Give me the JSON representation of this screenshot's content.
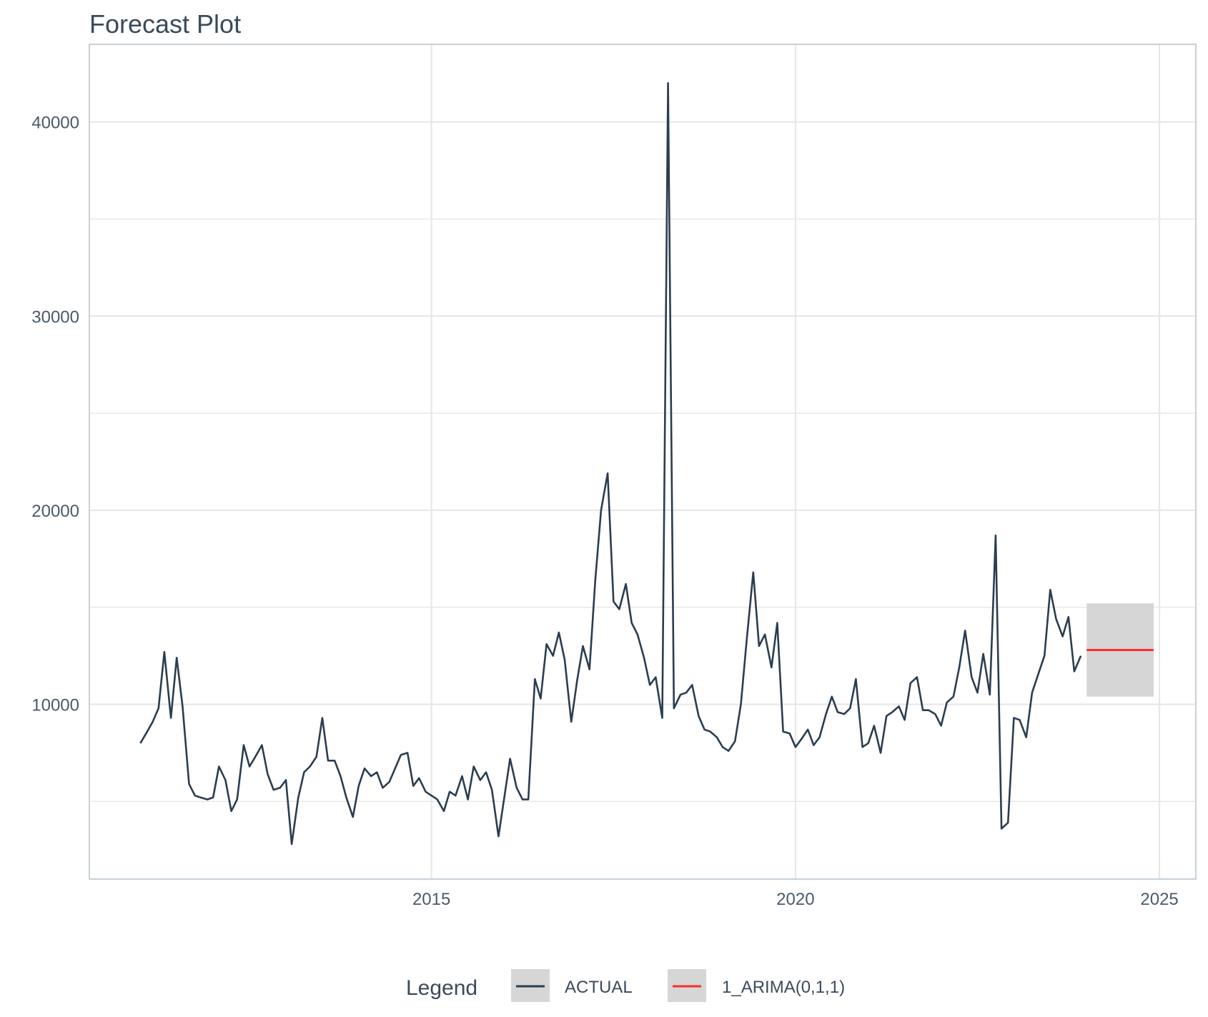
{
  "chart_data": {
    "type": "line",
    "title": "Forecast Plot",
    "xlabel": "",
    "ylabel": "",
    "xlim": [
      2010.3,
      2025.5
    ],
    "ylim": [
      1000,
      44000
    ],
    "x_ticks": [
      2015,
      2020,
      2025
    ],
    "x_tick_labels": [
      "2015",
      "2020",
      "2025"
    ],
    "y_ticks": [
      10000,
      20000,
      30000,
      40000
    ],
    "y_tick_labels": [
      "10000",
      "20000",
      "30000",
      "40000"
    ],
    "grid": true,
    "legend": {
      "title": "Legend",
      "position": "bottom",
      "entries": [
        "ACTUAL",
        "1_ARIMA(0,1,1)"
      ]
    },
    "colors": {
      "actual": "#2b3d4f",
      "forecast": "#ff2a2a",
      "interval": "#d6d6d6",
      "grid": "#e6e6e6",
      "frame": "#c8d0d8"
    },
    "series": [
      {
        "name": "ACTUAL",
        "points": [
          [
            2011.0,
            8000
          ],
          [
            2011.08,
            8500
          ],
          [
            2011.17,
            9100
          ],
          [
            2011.25,
            9800
          ],
          [
            2011.33,
            12700
          ],
          [
            2011.42,
            9300
          ],
          [
            2011.5,
            12400
          ],
          [
            2011.58,
            9900
          ],
          [
            2011.67,
            5900
          ],
          [
            2011.75,
            5300
          ],
          [
            2011.83,
            5200
          ],
          [
            2011.92,
            5100
          ],
          [
            2012.0,
            5200
          ],
          [
            2012.08,
            6800
          ],
          [
            2012.17,
            6100
          ],
          [
            2012.25,
            4500
          ],
          [
            2012.33,
            5100
          ],
          [
            2012.42,
            7900
          ],
          [
            2012.5,
            6800
          ],
          [
            2012.58,
            7300
          ],
          [
            2012.67,
            7900
          ],
          [
            2012.75,
            6400
          ],
          [
            2012.83,
            5600
          ],
          [
            2012.92,
            5700
          ],
          [
            2013.0,
            6100
          ],
          [
            2013.08,
            2800
          ],
          [
            2013.17,
            5200
          ],
          [
            2013.25,
            6500
          ],
          [
            2013.33,
            6800
          ],
          [
            2013.42,
            7300
          ],
          [
            2013.5,
            9300
          ],
          [
            2013.58,
            7100
          ],
          [
            2013.67,
            7100
          ],
          [
            2013.75,
            6300
          ],
          [
            2013.83,
            5200
          ],
          [
            2013.92,
            4200
          ],
          [
            2014.0,
            5800
          ],
          [
            2014.08,
            6700
          ],
          [
            2014.17,
            6300
          ],
          [
            2014.25,
            6500
          ],
          [
            2014.33,
            5700
          ],
          [
            2014.42,
            6000
          ],
          [
            2014.5,
            6700
          ],
          [
            2014.58,
            7400
          ],
          [
            2014.67,
            7500
          ],
          [
            2014.75,
            5800
          ],
          [
            2014.83,
            6200
          ],
          [
            2014.92,
            5500
          ],
          [
            2015.0,
            5300
          ],
          [
            2015.08,
            5100
          ],
          [
            2015.17,
            4500
          ],
          [
            2015.25,
            5500
          ],
          [
            2015.33,
            5300
          ],
          [
            2015.42,
            6300
          ],
          [
            2015.5,
            5100
          ],
          [
            2015.58,
            6800
          ],
          [
            2015.67,
            6100
          ],
          [
            2015.75,
            6500
          ],
          [
            2015.83,
            5600
          ],
          [
            2015.92,
            3200
          ],
          [
            2016.0,
            5200
          ],
          [
            2016.08,
            7200
          ],
          [
            2016.17,
            5700
          ],
          [
            2016.25,
            5100
          ],
          [
            2016.33,
            5100
          ],
          [
            2016.42,
            11300
          ],
          [
            2016.5,
            10300
          ],
          [
            2016.58,
            13100
          ],
          [
            2016.67,
            12500
          ],
          [
            2016.75,
            13700
          ],
          [
            2016.83,
            12300
          ],
          [
            2016.92,
            9100
          ],
          [
            2017.0,
            11200
          ],
          [
            2017.08,
            13000
          ],
          [
            2017.17,
            11800
          ],
          [
            2017.25,
            16400
          ],
          [
            2017.33,
            20000
          ],
          [
            2017.42,
            21900
          ],
          [
            2017.5,
            15300
          ],
          [
            2017.58,
            14900
          ],
          [
            2017.67,
            16200
          ],
          [
            2017.75,
            14200
          ],
          [
            2017.83,
            13600
          ],
          [
            2017.92,
            12400
          ],
          [
            2018.0,
            11000
          ],
          [
            2018.08,
            11400
          ],
          [
            2018.17,
            9300
          ],
          [
            2018.25,
            42000
          ],
          [
            2018.33,
            9800
          ],
          [
            2018.42,
            10500
          ],
          [
            2018.5,
            10600
          ],
          [
            2018.58,
            11000
          ],
          [
            2018.67,
            9400
          ],
          [
            2018.75,
            8700
          ],
          [
            2018.83,
            8600
          ],
          [
            2018.92,
            8300
          ],
          [
            2019.0,
            7800
          ],
          [
            2019.08,
            7600
          ],
          [
            2019.17,
            8100
          ],
          [
            2019.25,
            10000
          ],
          [
            2019.33,
            13300
          ],
          [
            2019.42,
            16800
          ],
          [
            2019.5,
            13000
          ],
          [
            2019.58,
            13600
          ],
          [
            2019.67,
            11900
          ],
          [
            2019.75,
            14200
          ],
          [
            2019.83,
            8600
          ],
          [
            2019.92,
            8500
          ],
          [
            2020.0,
            7800
          ],
          [
            2020.08,
            8200
          ],
          [
            2020.17,
            8700
          ],
          [
            2020.25,
            7900
          ],
          [
            2020.33,
            8300
          ],
          [
            2020.42,
            9500
          ],
          [
            2020.5,
            10400
          ],
          [
            2020.58,
            9600
          ],
          [
            2020.67,
            9500
          ],
          [
            2020.75,
            9800
          ],
          [
            2020.83,
            11300
          ],
          [
            2020.92,
            7800
          ],
          [
            2021.0,
            8000
          ],
          [
            2021.08,
            8900
          ],
          [
            2021.17,
            7500
          ],
          [
            2021.25,
            9400
          ],
          [
            2021.33,
            9600
          ],
          [
            2021.42,
            9900
          ],
          [
            2021.5,
            9200
          ],
          [
            2021.58,
            11100
          ],
          [
            2021.67,
            11400
          ],
          [
            2021.75,
            9700
          ],
          [
            2021.83,
            9700
          ],
          [
            2021.92,
            9500
          ],
          [
            2022.0,
            8900
          ],
          [
            2022.08,
            10100
          ],
          [
            2022.17,
            10400
          ],
          [
            2022.25,
            11900
          ],
          [
            2022.33,
            13800
          ],
          [
            2022.42,
            11400
          ],
          [
            2022.5,
            10600
          ],
          [
            2022.58,
            12600
          ],
          [
            2022.67,
            10500
          ],
          [
            2022.75,
            18700
          ],
          [
            2022.83,
            3600
          ],
          [
            2022.92,
            3900
          ],
          [
            2023.0,
            9300
          ],
          [
            2023.08,
            9200
          ],
          [
            2023.17,
            8300
          ],
          [
            2023.25,
            10600
          ],
          [
            2023.33,
            11500
          ],
          [
            2023.42,
            12500
          ],
          [
            2023.5,
            15900
          ],
          [
            2023.58,
            14400
          ],
          [
            2023.67,
            13500
          ],
          [
            2023.75,
            14500
          ],
          [
            2023.83,
            11700
          ],
          [
            2023.92,
            12500
          ]
        ]
      },
      {
        "name": "1_ARIMA(0,1,1)",
        "points": [
          [
            2024.0,
            12800
          ],
          [
            2024.92,
            12800
          ]
        ],
        "interval": {
          "x": [
            2024.0,
            2024.92
          ],
          "lower": 10400,
          "upper": 15200
        }
      }
    ]
  }
}
